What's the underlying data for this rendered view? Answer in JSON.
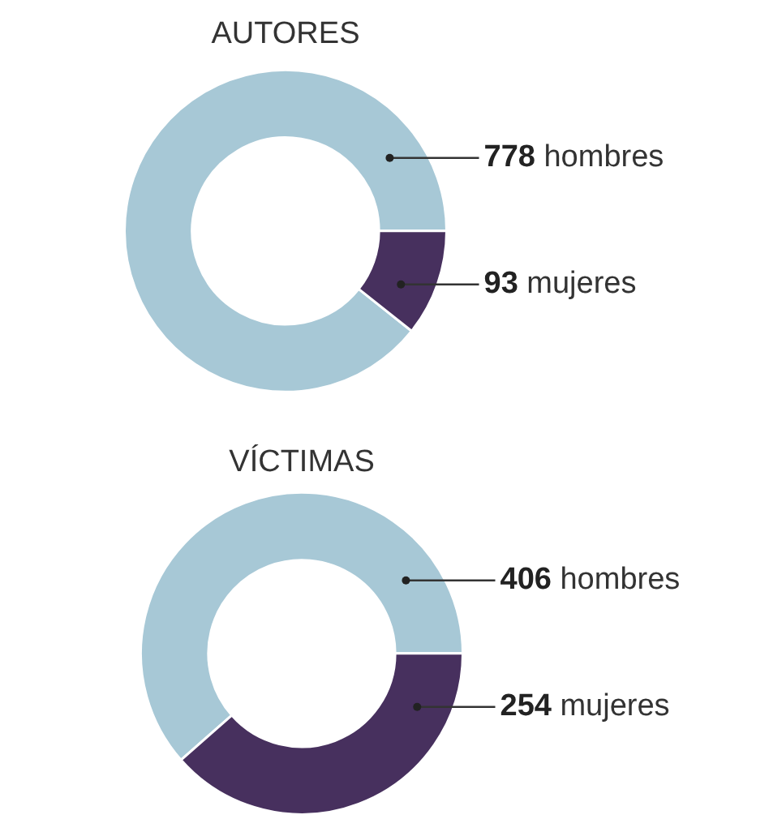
{
  "chart_data": [
    {
      "type": "donut",
      "title": "AUTORES",
      "categories": [
        "hombres",
        "mujeres"
      ],
      "values": [
        778,
        93
      ],
      "colors": [
        "#a7c8d6",
        "#47305e"
      ],
      "data_labels": true,
      "legend": false
    },
    {
      "type": "donut",
      "title": "VÍCTIMAS",
      "categories": [
        "hombres",
        "mujeres"
      ],
      "values": [
        406,
        254
      ],
      "colors": [
        "#a7c8d6",
        "#47305e"
      ],
      "data_labels": true,
      "legend": false
    }
  ]
}
